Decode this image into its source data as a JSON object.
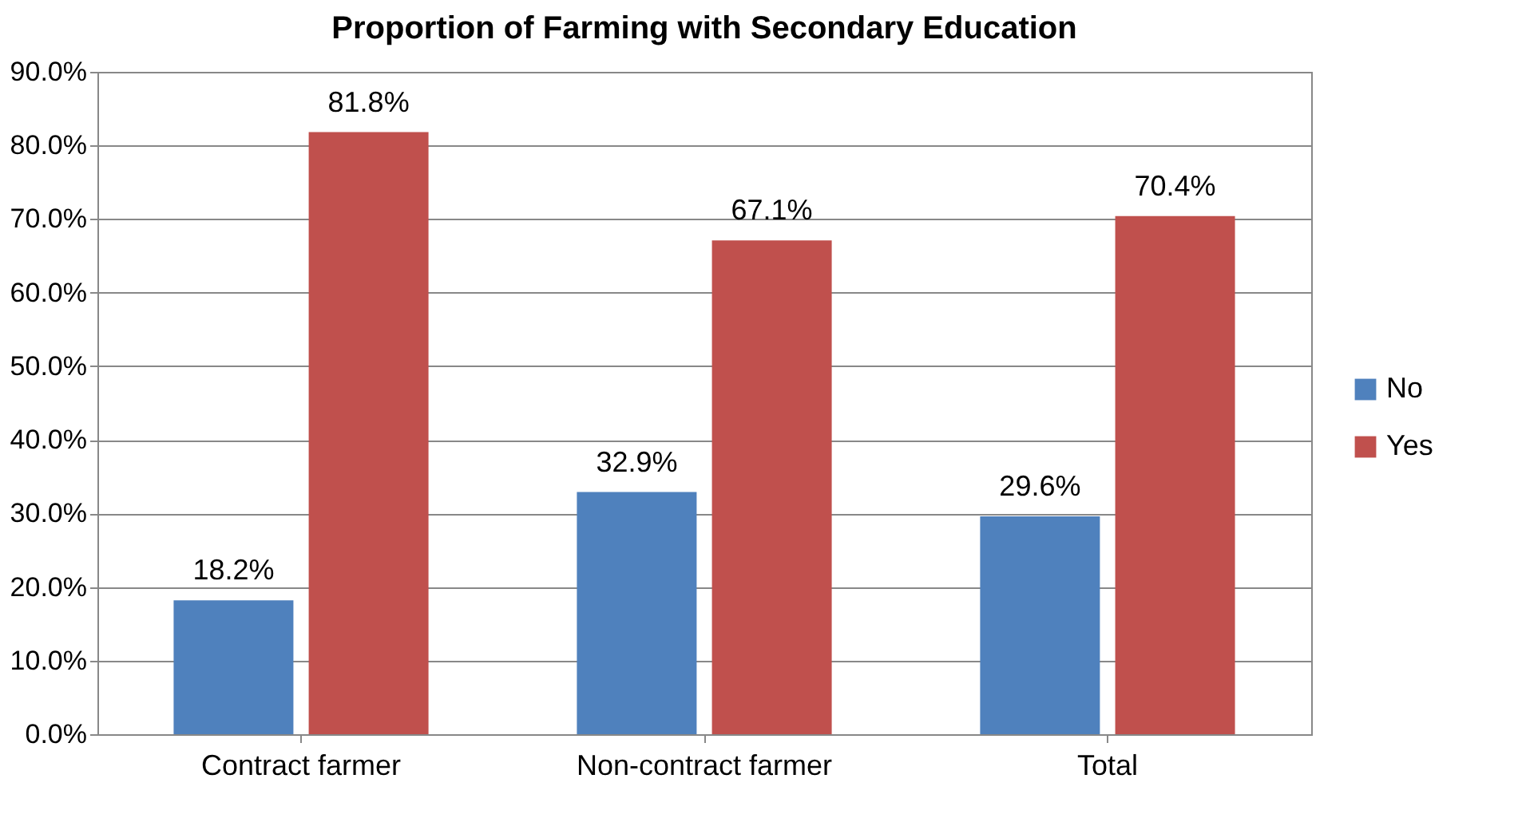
{
  "chart_data": {
    "type": "bar",
    "title": "Proportion of Farming with Secondary Education",
    "categories": [
      "Contract farmer",
      "Non-contract farmer",
      "Total"
    ],
    "series": [
      {
        "name": "No",
        "color": "#4f81bd",
        "values": [
          18.2,
          32.9,
          29.6
        ],
        "value_labels": [
          "18.2%",
          "32.9%",
          "29.6%"
        ]
      },
      {
        "name": "Yes",
        "color": "#c0504d",
        "values": [
          81.8,
          67.1,
          70.4
        ],
        "value_labels": [
          "81.8%",
          "67.1%",
          "70.4%"
        ]
      }
    ],
    "ylim": [
      0,
      90
    ],
    "yticks": [
      {
        "value": 0,
        "label": "0.0%"
      },
      {
        "value": 10,
        "label": "10.0%"
      },
      {
        "value": 20,
        "label": "20.0%"
      },
      {
        "value": 30,
        "label": "30.0%"
      },
      {
        "value": 40,
        "label": "40.0%"
      },
      {
        "value": 50,
        "label": "50.0%"
      },
      {
        "value": 60,
        "label": "60.0%"
      },
      {
        "value": 70,
        "label": "70.0%"
      },
      {
        "value": 80,
        "label": "80.0%"
      },
      {
        "value": 90,
        "label": "90.0%"
      }
    ],
    "grid": "y",
    "legend": "right"
  }
}
